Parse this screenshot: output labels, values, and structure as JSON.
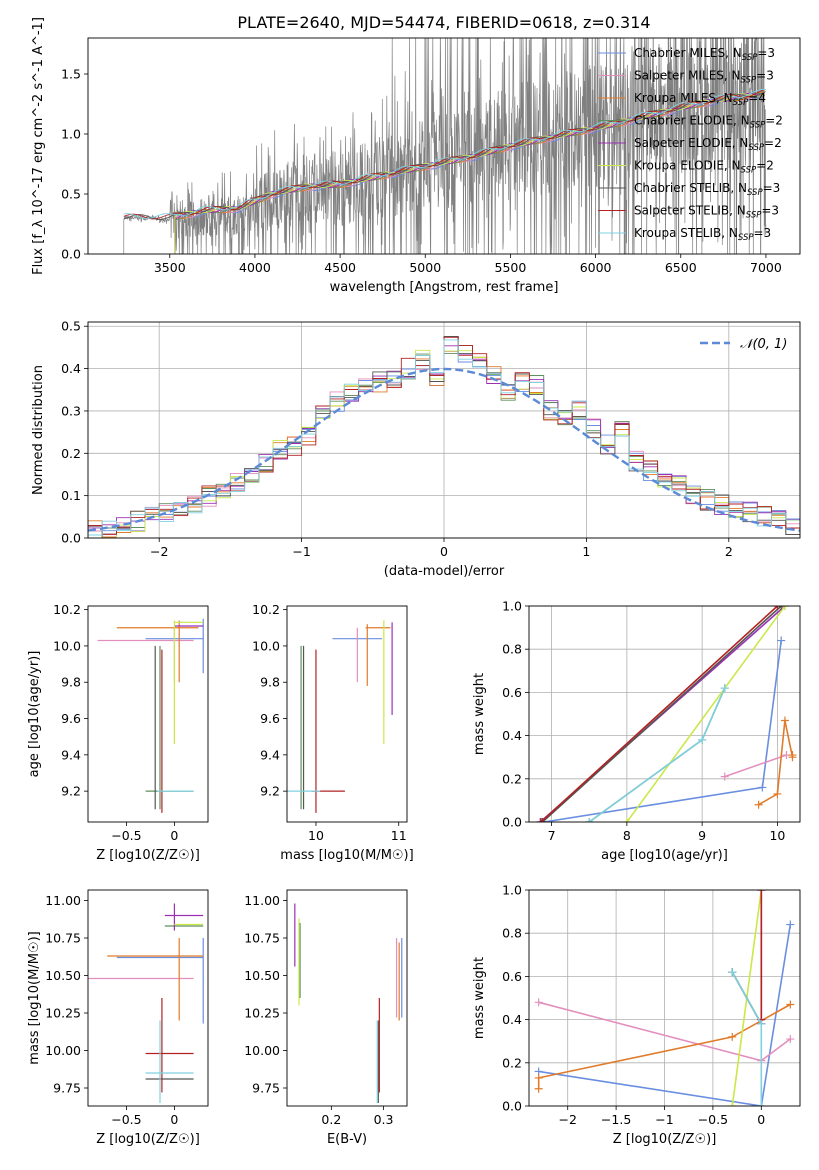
{
  "figure_title": "PLATE=2640, MJD=54474, FIBERID=0618, z=0.314",
  "models": [
    {
      "name": "Chabrier MILES",
      "nssp": "3",
      "color": "#6a8ee0"
    },
    {
      "name": "Salpeter MILES",
      "nssp": "3",
      "color": "#e38fbe"
    },
    {
      "name": "Kroupa MILES",
      "nssp": "4",
      "color": "#e07b2a"
    },
    {
      "name": "Chabrier ELODIE",
      "nssp": "2",
      "color": "#5e8f5e"
    },
    {
      "name": "Salpeter ELODIE",
      "nssp": "2",
      "color": "#9b30b5"
    },
    {
      "name": "Kroupa ELODIE",
      "nssp": "2",
      "color": "#c9e84a"
    },
    {
      "name": "Chabrier STELIB",
      "nssp": "3",
      "color": "#555555"
    },
    {
      "name": "Salpeter STELIB",
      "nssp": "3",
      "color": "#b22222"
    },
    {
      "name": "Kroupa STELIB",
      "nssp": "3",
      "color": "#80d0e0"
    }
  ],
  "chart_data": [
    {
      "id": "spectrum",
      "type": "line",
      "xlabel": "wavelength [Angstrom, rest frame]",
      "ylabel": "Flux [f_λ 10^-17 erg cm^-2 s^-1 A^-1]",
      "xlim": [
        3020,
        7200
      ],
      "ylim": [
        0,
        1.8
      ],
      "xticks": [
        3500,
        4000,
        4500,
        5000,
        5500,
        6000,
        6500,
        7000
      ],
      "yticks": [
        0.0,
        0.5,
        1.0,
        1.5
      ],
      "data_color": "#808080",
      "data_series": {
        "name": "data",
        "x": [
          3230,
          3400,
          3500,
          3700,
          3900,
          4100,
          4300,
          4500,
          4700,
          4900,
          5100,
          5300,
          5500,
          5700,
          5900,
          6100,
          6300,
          6500,
          6700,
          6900,
          7000
        ],
        "y": [
          0.3,
          0.3,
          0.28,
          0.32,
          0.34,
          0.45,
          0.55,
          0.55,
          0.62,
          0.7,
          0.78,
          0.85,
          0.95,
          1.0,
          1.05,
          1.1,
          1.2,
          1.25,
          1.3,
          1.35,
          1.35
        ]
      },
      "model_series": {
        "x": [
          3230,
          3400,
          3500,
          3700,
          3900,
          4100,
          4300,
          4500,
          4700,
          4900,
          5100,
          5300,
          5500,
          5700,
          5900,
          6100,
          6300,
          6500,
          6700,
          6900,
          7000
        ],
        "y": [
          0.3,
          0.3,
          0.3,
          0.36,
          0.38,
          0.5,
          0.56,
          0.58,
          0.64,
          0.7,
          0.76,
          0.82,
          0.9,
          0.96,
          1.02,
          1.08,
          1.15,
          1.22,
          1.28,
          1.32,
          1.34
        ]
      },
      "legend_position": "upper right"
    },
    {
      "id": "residuals",
      "type": "line",
      "xlabel": "(data-model)/error",
      "ylabel": "Normed distribution",
      "xlim": [
        -2.5,
        2.5
      ],
      "ylim": [
        0,
        0.51
      ],
      "xticks": [
        -2,
        -1,
        0,
        1,
        2
      ],
      "yticks": [
        0.0,
        0.1,
        0.2,
        0.3,
        0.4,
        0.5
      ],
      "grid": true,
      "gaussian_label": "𝒩(0, 1)",
      "gaussian_color": "#5b8ad6",
      "legend_position": "upper right",
      "bin_edges": [
        -2.5,
        -2.4,
        -2.3,
        -2.2,
        -2.1,
        -2.0,
        -1.9,
        -1.8,
        -1.7,
        -1.6,
        -1.5,
        -1.4,
        -1.3,
        -1.2,
        -1.1,
        -1.0,
        -0.9,
        -0.8,
        -0.7,
        -0.6,
        -0.5,
        -0.4,
        -0.3,
        -0.2,
        -0.1,
        0.0,
        0.1,
        0.2,
        0.3,
        0.4,
        0.5,
        0.6,
        0.7,
        0.8,
        0.9,
        1.0,
        1.1,
        1.2,
        1.3,
        1.4,
        1.5,
        1.6,
        1.7,
        1.8,
        1.9,
        2.0,
        2.1,
        2.2,
        2.3,
        2.4,
        2.5
      ],
      "hist_values": [
        0.02,
        0.02,
        0.03,
        0.04,
        0.05,
        0.06,
        0.06,
        0.08,
        0.1,
        0.11,
        0.13,
        0.15,
        0.18,
        0.21,
        0.22,
        0.24,
        0.29,
        0.32,
        0.34,
        0.36,
        0.37,
        0.38,
        0.4,
        0.42,
        0.37,
        0.46,
        0.44,
        0.42,
        0.38,
        0.35,
        0.37,
        0.36,
        0.3,
        0.28,
        0.3,
        0.26,
        0.22,
        0.25,
        0.18,
        0.16,
        0.14,
        0.13,
        0.1,
        0.09,
        0.08,
        0.07,
        0.06,
        0.05,
        0.04,
        0.03
      ]
    },
    {
      "id": "age_vs_Z",
      "type": "scatter",
      "xlabel": "Z [log10(Z/Z☉)]",
      "ylabel": "age [log10(age/yr)]",
      "xlim": [
        -0.9,
        0.35
      ],
      "ylim": [
        9.03,
        10.22
      ],
      "xticks": [
        -0.5,
        0.0
      ],
      "yticks": [
        9.2,
        9.4,
        9.6,
        9.8,
        10.0,
        10.2
      ],
      "segments": [
        {
          "model": 0,
          "x": [
            -0.3,
            0.3
          ],
          "y": [
            10.04,
            10.04
          ]
        },
        {
          "model": 0,
          "x": [
            0.3,
            0.3
          ],
          "y": [
            9.85,
            10.15
          ]
        },
        {
          "model": 1,
          "x": [
            -0.8,
            0.2
          ],
          "y": [
            10.03,
            10.03
          ]
        },
        {
          "model": 1,
          "x": [
            0.0,
            0.0
          ],
          "y": [
            9.8,
            10.1
          ]
        },
        {
          "model": 2,
          "x": [
            -0.6,
            0.25
          ],
          "y": [
            10.1,
            10.1
          ]
        },
        {
          "model": 2,
          "x": [
            0.05,
            0.05
          ],
          "y": [
            9.8,
            10.14
          ]
        },
        {
          "model": 3,
          "x": [
            -0.3,
            0.2
          ],
          "y": [
            9.2,
            9.2
          ]
        },
        {
          "model": 3,
          "x": [
            -0.15,
            -0.15
          ],
          "y": [
            9.1,
            10.0
          ]
        },
        {
          "model": 4,
          "x": [
            0.0,
            0.3
          ],
          "y": [
            10.11,
            10.11
          ]
        },
        {
          "model": 5,
          "x": [
            0.0,
            0.3
          ],
          "y": [
            10.13,
            10.13
          ]
        },
        {
          "model": 5,
          "x": [
            0.0,
            0.0
          ],
          "y": [
            9.46,
            10.14
          ]
        },
        {
          "model": 6,
          "x": [
            -0.2,
            -0.2
          ],
          "y": [
            9.1,
            10.0
          ]
        },
        {
          "model": 7,
          "x": [
            -0.13,
            -0.13
          ],
          "y": [
            9.08,
            9.98
          ]
        },
        {
          "model": 8,
          "x": [
            -0.18,
            0.2
          ],
          "y": [
            9.2,
            9.2
          ]
        }
      ]
    },
    {
      "id": "age_vs_mass",
      "type": "scatter",
      "xlabel": "mass [log10(M/M☉)]",
      "ylabel": "",
      "xlim": [
        9.65,
        11.1
      ],
      "ylim": [
        9.03,
        10.22
      ],
      "xticks": [
        10,
        11
      ],
      "yticks": [
        9.2,
        9.4,
        9.6,
        9.8,
        10.0,
        10.2
      ],
      "segments": [
        {
          "model": 0,
          "x": [
            10.2,
            10.8
          ],
          "y": [
            10.04,
            10.04
          ]
        },
        {
          "model": 1,
          "x": [
            10.5,
            10.5
          ],
          "y": [
            9.8,
            10.1
          ]
        },
        {
          "model": 2,
          "x": [
            10.6,
            10.9
          ],
          "y": [
            10.1,
            10.1
          ]
        },
        {
          "model": 2,
          "x": [
            10.62,
            10.62
          ],
          "y": [
            9.78,
            10.12
          ]
        },
        {
          "model": 3,
          "x": [
            9.82,
            9.82
          ],
          "y": [
            9.1,
            10.0
          ]
        },
        {
          "model": 4,
          "x": [
            10.92,
            10.92
          ],
          "y": [
            9.62,
            10.13
          ]
        },
        {
          "model": 5,
          "x": [
            10.82,
            10.82
          ],
          "y": [
            9.46,
            10.14
          ]
        },
        {
          "model": 6,
          "x": [
            9.85,
            9.85
          ],
          "y": [
            9.1,
            10.0
          ]
        },
        {
          "model": 7,
          "x": [
            10.0,
            10.0
          ],
          "y": [
            9.08,
            9.98
          ]
        },
        {
          "model": 7,
          "x": [
            9.95,
            10.35
          ],
          "y": [
            9.2,
            9.2
          ]
        },
        {
          "model": 8,
          "x": [
            9.65,
            10.05
          ],
          "y": [
            9.2,
            9.2
          ]
        }
      ]
    },
    {
      "id": "weight_vs_age",
      "type": "line",
      "xlabel": "age [log10(age/yr)]",
      "ylabel": "mass weight",
      "xlim": [
        6.7,
        10.3
      ],
      "ylim": [
        0,
        1
      ],
      "xticks": [
        7,
        8,
        9,
        10
      ],
      "yticks": [
        0.0,
        0.2,
        0.4,
        0.6,
        0.8,
        1.0
      ],
      "grid": true,
      "series": [
        {
          "model": 0,
          "x": [
            6.9,
            9.8,
            10.05
          ],
          "y": [
            0.0,
            0.16,
            0.84
          ]
        },
        {
          "model": 1,
          "x": [
            9.3,
            10.12
          ],
          "y": [
            0.21,
            0.31
          ]
        },
        {
          "model": 2,
          "x": [
            9.75,
            10.0,
            10.1,
            10.2,
            10.2
          ],
          "y": [
            0.08,
            0.13,
            0.47,
            0.3,
            0.31
          ]
        },
        {
          "model": 3,
          "x": [
            7.5,
            9.0,
            9.3
          ],
          "y": [
            0.0,
            0.38,
            0.62
          ]
        },
        {
          "model": 4,
          "x": [
            6.85,
            10.1
          ],
          "y": [
            0.0,
            1.0
          ]
        },
        {
          "model": 5,
          "x": [
            8.0,
            10.1
          ],
          "y": [
            0.0,
            1.0
          ]
        },
        {
          "model": 6,
          "x": [
            6.88,
            10.05
          ],
          "y": [
            0.0,
            1.0
          ]
        },
        {
          "model": 7,
          "x": [
            6.86,
            10.0
          ],
          "y": [
            0.0,
            1.0
          ]
        },
        {
          "model": 8,
          "x": [
            7.5,
            9.0,
            9.3
          ],
          "y": [
            0.0,
            0.38,
            0.62
          ]
        }
      ]
    },
    {
      "id": "mass_vs_Z",
      "type": "scatter",
      "xlabel": "Z [log10(Z/Z☉)]",
      "ylabel": "mass [log10(M/M☉)]",
      "xlim": [
        -0.9,
        0.35
      ],
      "ylim": [
        9.63,
        11.07
      ],
      "xticks": [
        -0.5,
        0.0
      ],
      "yticks": [
        9.75,
        10.0,
        10.25,
        10.5,
        10.75,
        11.0
      ],
      "segments": [
        {
          "model": 0,
          "x": [
            -0.6,
            0.3
          ],
          "y": [
            10.62,
            10.62
          ]
        },
        {
          "model": 0,
          "x": [
            0.3,
            0.3
          ],
          "y": [
            10.18,
            10.75
          ]
        },
        {
          "model": 1,
          "x": [
            -0.9,
            0.2
          ],
          "y": [
            10.48,
            10.48
          ]
        },
        {
          "model": 2,
          "x": [
            -0.7,
            0.3
          ],
          "y": [
            10.63,
            10.63
          ]
        },
        {
          "model": 2,
          "x": [
            0.05,
            0.05
          ],
          "y": [
            10.2,
            10.75
          ]
        },
        {
          "model": 3,
          "x": [
            -0.1,
            0.3
          ],
          "y": [
            10.83,
            10.83
          ]
        },
        {
          "model": 4,
          "x": [
            -0.1,
            0.3
          ],
          "y": [
            10.9,
            10.9
          ]
        },
        {
          "model": 4,
          "x": [
            0.0,
            0.0
          ],
          "y": [
            10.8,
            10.98
          ]
        },
        {
          "model": 5,
          "x": [
            0.0,
            0.3
          ],
          "y": [
            10.84,
            10.84
          ]
        },
        {
          "model": 6,
          "x": [
            -0.3,
            0.2
          ],
          "y": [
            9.81,
            9.81
          ]
        },
        {
          "model": 7,
          "x": [
            -0.3,
            0.2
          ],
          "y": [
            9.98,
            9.98
          ]
        },
        {
          "model": 7,
          "x": [
            -0.13,
            -0.13
          ],
          "y": [
            9.72,
            10.35
          ]
        },
        {
          "model": 8,
          "x": [
            -0.3,
            0.2
          ],
          "y": [
            9.85,
            9.85
          ]
        },
        {
          "model": 8,
          "x": [
            -0.15,
            -0.15
          ],
          "y": [
            9.65,
            10.2
          ]
        }
      ]
    },
    {
      "id": "mass_vs_ebv",
      "type": "scatter",
      "xlabel": "E(B-V)",
      "ylabel": "",
      "xlim": [
        0.115,
        0.345
      ],
      "ylim": [
        9.63,
        11.07
      ],
      "xticks": [
        0.2,
        0.3
      ],
      "yticks": [
        9.75,
        10.0,
        10.25,
        10.5,
        10.75,
        11.0
      ],
      "segments": [
        {
          "model": 0,
          "x": [
            0.335,
            0.335
          ],
          "y": [
            10.22,
            10.75
          ]
        },
        {
          "model": 1,
          "x": [
            0.325,
            0.325
          ],
          "y": [
            10.22,
            10.75
          ]
        },
        {
          "model": 2,
          "x": [
            0.33,
            0.33
          ],
          "y": [
            10.2,
            10.72
          ]
        },
        {
          "model": 3,
          "x": [
            0.14,
            0.14
          ],
          "y": [
            10.35,
            10.85
          ]
        },
        {
          "model": 4,
          "x": [
            0.13,
            0.13
          ],
          "y": [
            10.56,
            10.98
          ]
        },
        {
          "model": 5,
          "x": [
            0.138,
            0.138
          ],
          "y": [
            10.3,
            10.88
          ]
        },
        {
          "model": 6,
          "x": [
            0.29,
            0.29
          ],
          "y": [
            9.65,
            10.2
          ]
        },
        {
          "model": 7,
          "x": [
            0.292,
            0.292
          ],
          "y": [
            9.72,
            10.35
          ]
        },
        {
          "model": 8,
          "x": [
            0.288,
            0.288
          ],
          "y": [
            9.65,
            10.2
          ]
        }
      ]
    },
    {
      "id": "weight_vs_Z",
      "type": "line",
      "xlabel": "Z [log10(Z/Z☉)]",
      "ylabel": "mass weight",
      "xlim": [
        -2.4,
        0.4
      ],
      "ylim": [
        0,
        1
      ],
      "xticks": [
        -2.0,
        -1.5,
        -1.0,
        -0.5,
        0.0
      ],
      "yticks": [
        0.0,
        0.2,
        0.4,
        0.6,
        0.8,
        1.0
      ],
      "grid": true,
      "series": [
        {
          "model": 0,
          "x": [
            -2.3,
            0.0,
            0.3
          ],
          "y": [
            0.16,
            0.0,
            0.84
          ]
        },
        {
          "model": 1,
          "x": [
            -2.3,
            0.0,
            0.3
          ],
          "y": [
            0.48,
            0.21,
            0.31
          ]
        },
        {
          "model": 2,
          "x": [
            -2.3,
            -2.3,
            -0.3,
            0.3
          ],
          "y": [
            0.08,
            0.13,
            0.32,
            0.47
          ]
        },
        {
          "model": 3,
          "x": [
            -0.3,
            0.0
          ],
          "y": [
            0.62,
            0.38
          ]
        },
        {
          "model": 4,
          "x": [
            0.0,
            0.0
          ],
          "y": [
            0.38,
            1.0
          ]
        },
        {
          "model": 5,
          "x": [
            -0.3,
            0.0
          ],
          "y": [
            0.0,
            1.0
          ]
        },
        {
          "model": 6,
          "x": [
            -0.3,
            0.0
          ],
          "y": [
            0.62,
            0.38
          ]
        },
        {
          "model": 7,
          "x": [
            0.0,
            0.0
          ],
          "y": [
            0.4,
            1.0
          ]
        },
        {
          "model": 8,
          "x": [
            -0.3,
            0.0,
            0.0
          ],
          "y": [
            0.62,
            0.38,
            0.0
          ]
        }
      ]
    }
  ]
}
